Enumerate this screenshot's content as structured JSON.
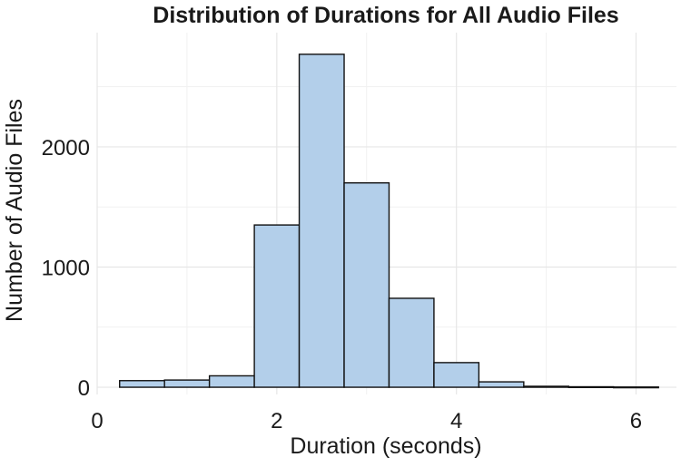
{
  "chart_data": {
    "type": "bar",
    "title": "Distribution of Durations for All Audio Files",
    "xlabel": "Duration (seconds)",
    "ylabel": "Number of Audio Files",
    "bin_edges": [
      0.25,
      0.75,
      1.25,
      1.75,
      2.25,
      2.75,
      3.25,
      3.75,
      4.25,
      4.75,
      5.25,
      5.75,
      6.25
    ],
    "values": [
      55,
      60,
      95,
      1350,
      2770,
      1700,
      740,
      205,
      45,
      8,
      4,
      2
    ],
    "xlim": [
      0,
      6.45
    ],
    "ylim": [
      -60,
      2950
    ],
    "x_ticks": [
      "0",
      "2",
      "4",
      "6"
    ],
    "y_ticks": [
      "0",
      "1000",
      "2000"
    ],
    "bar_color": "#b3cfea",
    "grid": true,
    "legend": "none"
  }
}
